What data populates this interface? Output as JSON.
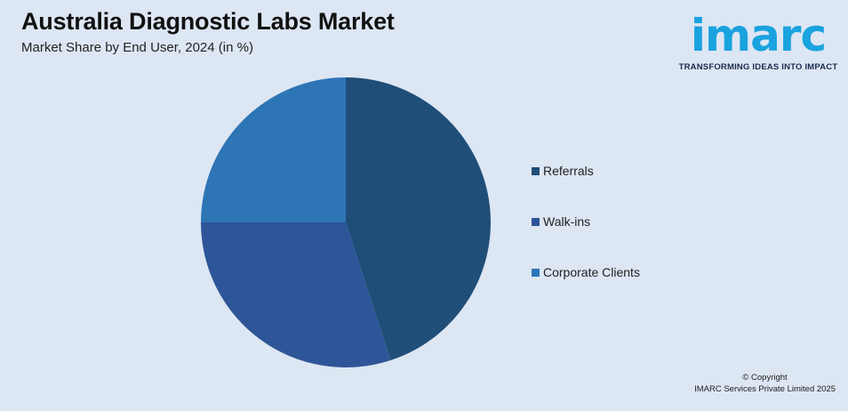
{
  "header": {
    "title": "Australia Diagnostic Labs Market",
    "subtitle": "Market Share by End User, 2024 (in %)"
  },
  "logo": {
    "word": "imarc",
    "tagline": "TRANSFORMING IDEAS INTO IMPACT",
    "color": "#1aa3df"
  },
  "chart_data": {
    "type": "pie",
    "title": "Australia Diagnostic Labs Market",
    "subtitle": "Market Share by End User, 2024 (in %)",
    "categories": [
      "Referrals",
      "Walk-ins",
      "Corporate Clients"
    ],
    "values": [
      45,
      30,
      25
    ],
    "colors": [
      "#1f4e79",
      "#2e5597",
      "#2e75b6"
    ],
    "legend_position": "right",
    "start_angle_deg": 0,
    "direction": "clockwise"
  },
  "footer": {
    "copyright_line1": "© Copyright",
    "copyright_line2": "IMARC Services Private Limited 2025"
  }
}
